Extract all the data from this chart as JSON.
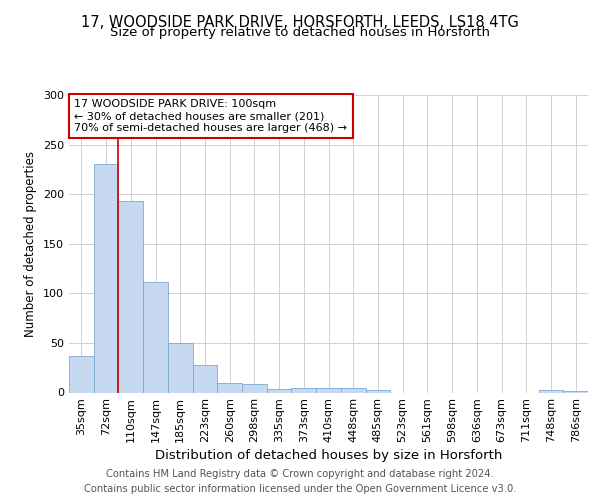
{
  "title1": "17, WOODSIDE PARK DRIVE, HORSFORTH, LEEDS, LS18 4TG",
  "title2": "Size of property relative to detached houses in Horsforth",
  "xlabel": "Distribution of detached houses by size in Horsforth",
  "ylabel": "Number of detached properties",
  "categories": [
    "35sqm",
    "72sqm",
    "110sqm",
    "147sqm",
    "185sqm",
    "223sqm",
    "260sqm",
    "298sqm",
    "335sqm",
    "373sqm",
    "410sqm",
    "448sqm",
    "485sqm",
    "523sqm",
    "561sqm",
    "598sqm",
    "636sqm",
    "673sqm",
    "711sqm",
    "748sqm",
    "786sqm"
  ],
  "values": [
    37,
    230,
    193,
    111,
    50,
    28,
    10,
    9,
    4,
    5,
    5,
    5,
    3,
    0,
    0,
    0,
    0,
    0,
    0,
    3,
    2
  ],
  "bar_color": "#c6d9f0",
  "bar_edge_color": "#7aaad0",
  "vline_x": 1.5,
  "vline_color": "#cc0000",
  "annotation_text": "17 WOODSIDE PARK DRIVE: 100sqm\n← 30% of detached houses are smaller (201)\n70% of semi-detached houses are larger (468) →",
  "annotation_box_color": "#ffffff",
  "annotation_box_edge": "#cc0000",
  "footer_text": "Contains HM Land Registry data © Crown copyright and database right 2024.\nContains public sector information licensed under the Open Government Licence v3.0.",
  "ylim": [
    0,
    300
  ],
  "yticks": [
    0,
    50,
    100,
    150,
    200,
    250,
    300
  ],
  "bg_color": "#ffffff",
  "grid_color": "#d0d0d0",
  "title1_fontsize": 10.5,
  "title2_fontsize": 9.5,
  "xlabel_fontsize": 9.5,
  "ylabel_fontsize": 8.5,
  "tick_fontsize": 8,
  "footer_fontsize": 7.2,
  "ann_fontsize": 8.0
}
